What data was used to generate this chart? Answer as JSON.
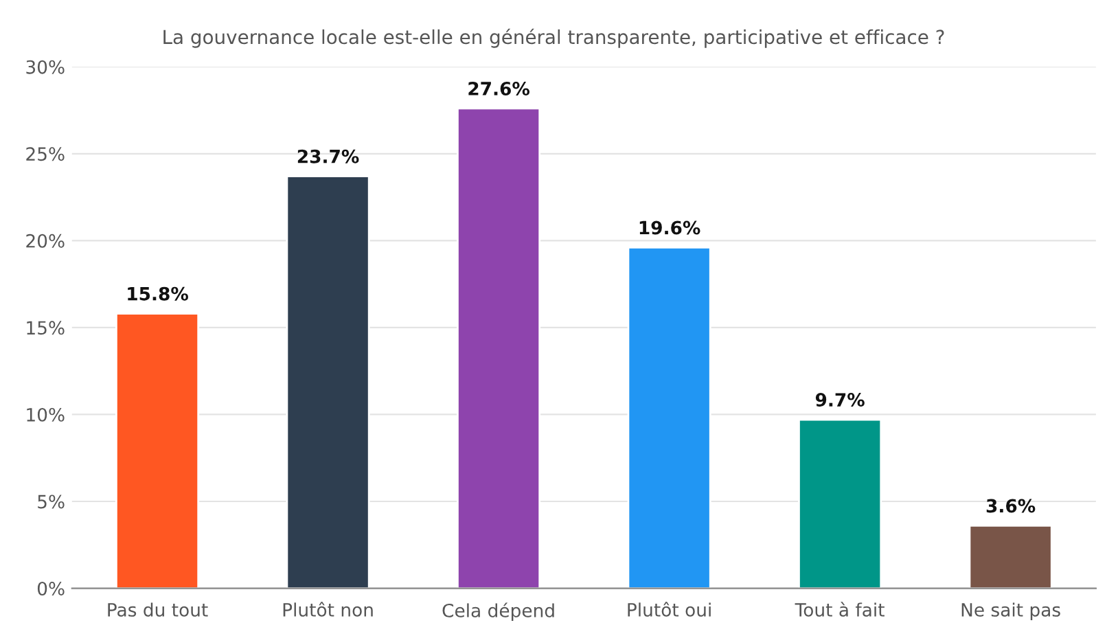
{
  "chart_data": {
    "type": "bar",
    "title": "La gouvernance locale est-elle en général transparente, participative et efficace ?",
    "categories": [
      "Pas du tout",
      "Plutôt non",
      "Cela dépend",
      "Plutôt oui",
      "Tout à fait",
      "Ne sait pas"
    ],
    "values": [
      15.8,
      23.7,
      27.6,
      19.6,
      9.7,
      3.6
    ],
    "colors": [
      "#ff5722",
      "#2e3e50",
      "#8e44ad",
      "#2196f3",
      "#009688",
      "#795548"
    ],
    "value_labels": [
      "15.8%",
      "23.7%",
      "27.6%",
      "19.6%",
      "9.7%",
      "3.6%"
    ],
    "ylim": [
      0,
      30
    ],
    "yticks": [
      {
        "value": 0,
        "label": "0%"
      },
      {
        "value": 5,
        "label": "5%"
      },
      {
        "value": 10,
        "label": "10%"
      },
      {
        "value": 15,
        "label": "15%"
      },
      {
        "value": 20,
        "label": "20%"
      },
      {
        "value": 25,
        "label": "25%"
      },
      {
        "value": 30,
        "label": "30%"
      }
    ],
    "grid": "y",
    "legend": false
  }
}
